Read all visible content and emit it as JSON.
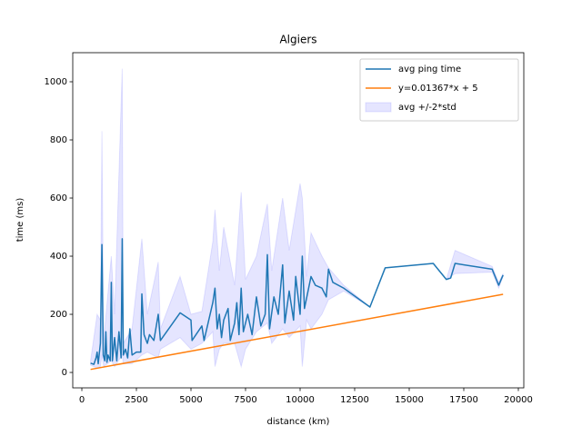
{
  "chart_data": {
    "type": "line",
    "title": "Algiers",
    "x_label": "distance (km)",
    "y_label": "time (ms)",
    "xlim": [
      -417,
      20250
    ],
    "ylim": [
      -53,
      1100
    ],
    "xticks": [
      0,
      2500,
      5000,
      7500,
      10000,
      12500,
      15000,
      17500,
      20000
    ],
    "yticks": [
      0,
      200,
      400,
      600,
      800,
      1000
    ],
    "legend": "upper right",
    "series": [
      {
        "name": "avg ping time",
        "color": "#1f77b4",
        "x": [
          400,
          550,
          650,
          700,
          750,
          850,
          920,
          980,
          1050,
          1100,
          1150,
          1200,
          1300,
          1350,
          1400,
          1500,
          1600,
          1700,
          1800,
          1850,
          1900,
          2000,
          2100,
          2200,
          2300,
          2500,
          2700,
          2750,
          2850,
          3000,
          3100,
          3300,
          3500,
          3600,
          4500,
          5000,
          5050,
          5500,
          5600,
          6000,
          6100,
          6200,
          6300,
          6400,
          6500,
          6700,
          6800,
          7000,
          7100,
          7200,
          7300,
          7400,
          7600,
          7800,
          8000,
          8200,
          8400,
          8500,
          8600,
          8800,
          9000,
          9200,
          9300,
          9500,
          9700,
          9800,
          10000,
          10100,
          10200,
          10500,
          10700,
          11000,
          11200,
          11300,
          11500,
          12000,
          13200,
          13900,
          16100,
          16700,
          16900,
          17100,
          18800,
          19100,
          19300
        ],
        "values": [
          32,
          28,
          50,
          70,
          30,
          100,
          440,
          60,
          40,
          140,
          35,
          60,
          40,
          310,
          40,
          120,
          40,
          140,
          50,
          460,
          60,
          80,
          50,
          150,
          60,
          70,
          70,
          270,
          130,
          100,
          130,
          110,
          200,
          110,
          205,
          180,
          110,
          160,
          110,
          240,
          290,
          150,
          200,
          120,
          180,
          220,
          110,
          170,
          240,
          130,
          290,
          140,
          200,
          130,
          260,
          160,
          200,
          405,
          150,
          260,
          200,
          370,
          170,
          280,
          180,
          330,
          200,
          400,
          220,
          330,
          300,
          290,
          260,
          355,
          310,
          290,
          225,
          360,
          375,
          320,
          325,
          375,
          355,
          300,
          335
        ]
      },
      {
        "name": "y=0.01367*x + 5",
        "color": "#ff7f0e",
        "x": [
          400,
          19300
        ],
        "values": [
          10.5,
          268.8
        ]
      }
    ],
    "band": {
      "name": "avg +/-2*std",
      "color": "#0000ff",
      "x": [
        400,
        700,
        850,
        920,
        1000,
        1350,
        1500,
        1850,
        1900,
        2300,
        2750,
        3000,
        3500,
        3600,
        4500,
        5000,
        5500,
        6000,
        6100,
        6300,
        6500,
        7000,
        7300,
        7500,
        8000,
        8500,
        8700,
        9200,
        9500,
        10000,
        10100,
        10300,
        10500,
        11000,
        11300,
        12000,
        13200,
        13900,
        16100,
        16700,
        17100,
        18800,
        19100,
        19300
      ],
      "lower": [
        25,
        15,
        20,
        60,
        20,
        40,
        20,
        60,
        30,
        30,
        60,
        70,
        50,
        80,
        120,
        80,
        100,
        140,
        20,
        80,
        100,
        100,
        20,
        80,
        140,
        170,
        100,
        150,
        120,
        160,
        20,
        180,
        150,
        200,
        250,
        280,
        225,
        360,
        375,
        320,
        340,
        345,
        290,
        330
      ],
      "upper": [
        40,
        200,
        180,
        830,
        110,
        400,
        200,
        1045,
        100,
        150,
        460,
        200,
        380,
        150,
        330,
        200,
        210,
        450,
        560,
        350,
        500,
        300,
        620,
        320,
        400,
        580,
        350,
        600,
        420,
        650,
        600,
        330,
        480,
        400,
        360,
        300,
        225,
        360,
        375,
        320,
        420,
        365,
        310,
        340
      ]
    }
  }
}
